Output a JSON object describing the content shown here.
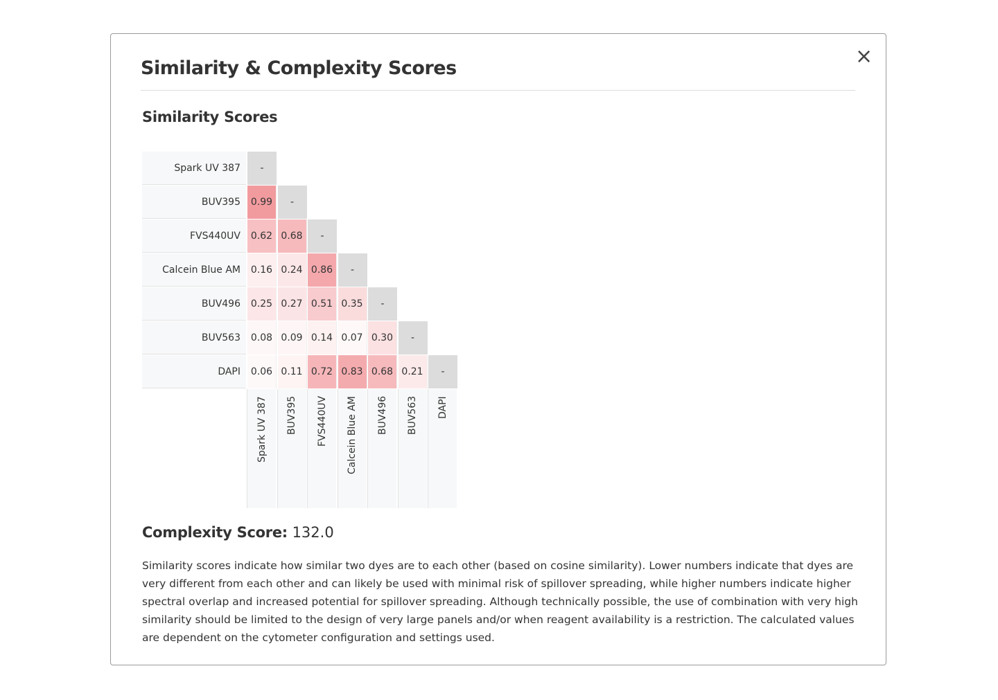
{
  "modal": {
    "title": "Similarity & Complexity Scores",
    "close_icon": "×",
    "section_title": "Similarity Scores",
    "complexity_label": "Complexity Score:",
    "complexity_value": "132.0",
    "description": "Similarity scores indicate how similar two dyes are to each other (based on cosine similarity). Lower numbers indicate that dyes are very different from each other and can likely be used with minimal risk of spillover spreading, while higher numbers indicate higher spectral overlap and increased potential for spillover spreading. Although technically possible, the use of combination with very high similarity should be limited to the design of very large panels and/or when reagent availability is a restriction. The calculated values are dependent on the cytometer configuration and settings used."
  },
  "chart_data": {
    "type": "heatmap",
    "labels": [
      "Spark UV 387",
      "BUV395",
      "FVS440UV",
      "Calcein Blue AM",
      "BUV496",
      "BUV563",
      "DAPI"
    ],
    "diagonal_text": "-",
    "matrix": [
      [],
      [
        "0.99"
      ],
      [
        "0.62",
        "0.68"
      ],
      [
        "0.16",
        "0.24",
        "0.86"
      ],
      [
        "0.25",
        "0.27",
        "0.51",
        "0.35"
      ],
      [
        "0.08",
        "0.09",
        "0.14",
        "0.07",
        "0.30"
      ],
      [
        "0.06",
        "0.11",
        "0.72",
        "0.83",
        "0.68",
        "0.21"
      ]
    ],
    "color_high": "#f29a9e",
    "color_low": "#ffffff",
    "diagonal_color": "#dcdcdd"
  }
}
